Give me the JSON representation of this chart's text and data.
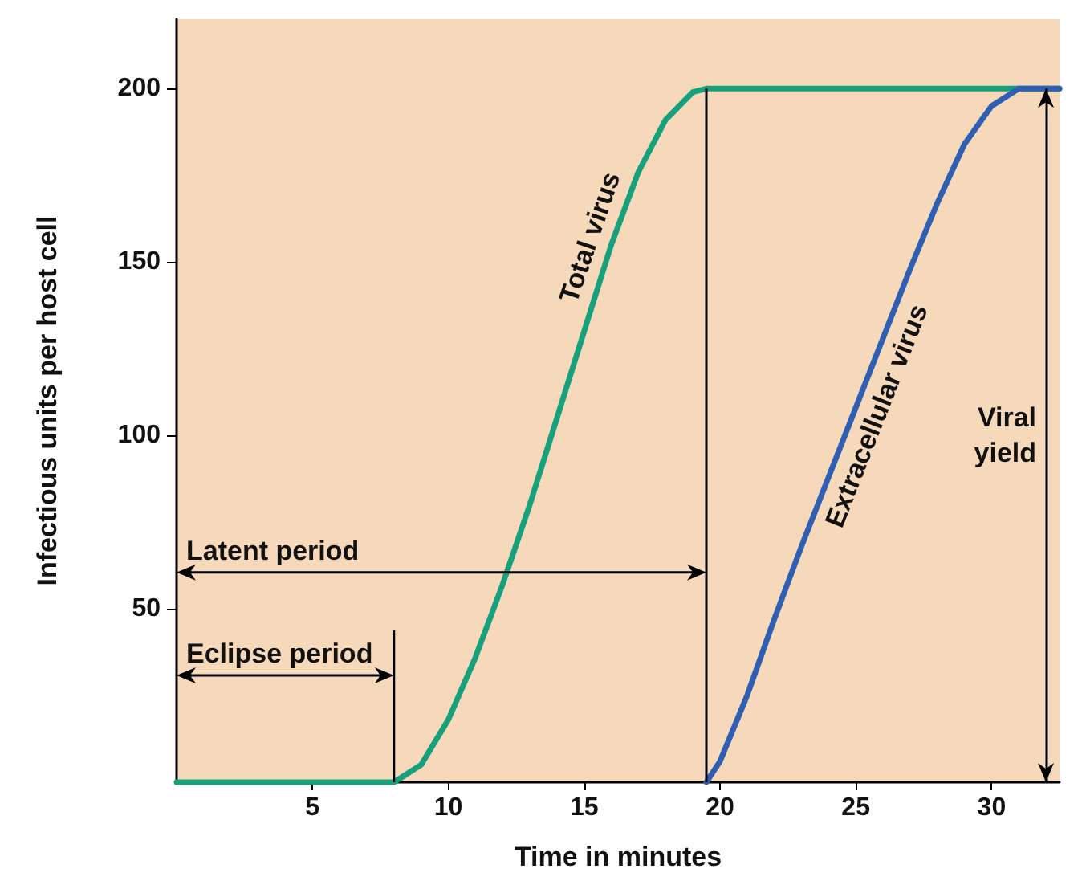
{
  "chart_data": {
    "type": "line",
    "xlabel": "Time in minutes",
    "ylabel": "Infectious units per host cell",
    "xlim": [
      0,
      32.5
    ],
    "ylim": [
      0,
      220
    ],
    "xticks": [
      5,
      10,
      15,
      20,
      25,
      30
    ],
    "yticks": [
      50,
      100,
      150,
      200
    ],
    "grid": false,
    "legend": false,
    "marker": "none",
    "line_style": "solid",
    "series": [
      {
        "name": "Total virus",
        "color": "#16a07c",
        "x": [
          0,
          8,
          9,
          10,
          11,
          12,
          13,
          14,
          15,
          16,
          17,
          18,
          19,
          19.5,
          32.5
        ],
        "values": [
          0,
          0,
          5,
          18,
          36,
          57,
          80,
          105,
          130,
          155,
          176,
          191,
          199,
          200,
          200
        ]
      },
      {
        "name": "Extracellular virus",
        "color": "#2f5fb3",
        "x": [
          19.5,
          20,
          21,
          22,
          23,
          24,
          25,
          26,
          27,
          28,
          29,
          30,
          31,
          32.5
        ],
        "values": [
          0,
          6,
          25,
          47,
          68,
          88,
          108,
          128,
          148,
          167,
          184,
          195,
          200,
          200
        ]
      }
    ],
    "ref_lines": [
      {
        "axis": "x",
        "value": 19.5,
        "color": "#000000"
      },
      {
        "axis": "x",
        "value": 32,
        "label": "Viral yield",
        "color": "#000000"
      }
    ],
    "annotations": [
      "Latent period",
      {
        "text": "Eclipse period",
        "x": 8,
        "y": 0
      }
    ]
  }
}
